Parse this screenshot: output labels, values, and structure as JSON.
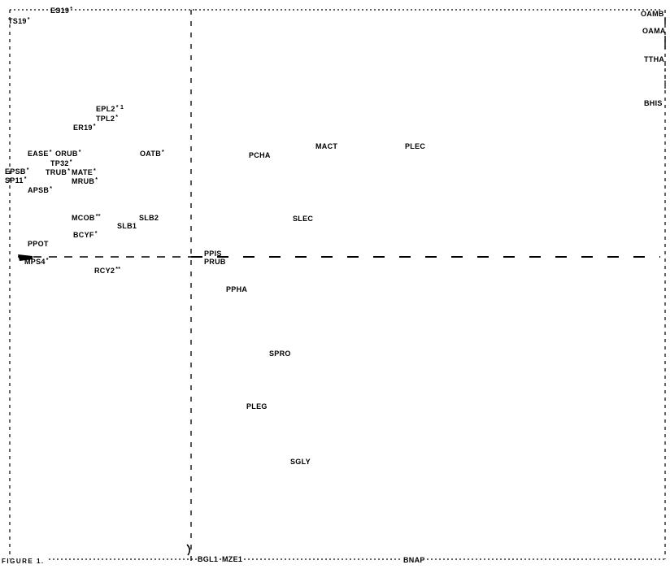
{
  "figure": {
    "caption": "FIGURE 1.",
    "labels": [
      {
        "text": "TS19",
        "mark": "*"
      },
      {
        "text": "ES19",
        "mark": "*"
      },
      {
        "text": "OAMB",
        "mark": ""
      },
      {
        "text": "OAMA",
        "mark": ""
      },
      {
        "text": "TTHA",
        "mark": ""
      },
      {
        "text": "BHIS",
        "mark": ""
      },
      {
        "text": "EPL2",
        "mark": "* 1"
      },
      {
        "text": "TPL2",
        "mark": "*"
      },
      {
        "text": "ER19",
        "mark": "*"
      },
      {
        "text": "EASE",
        "mark": "*"
      },
      {
        "text": "ORUB",
        "mark": "*"
      },
      {
        "text": "OATB",
        "mark": "*"
      },
      {
        "text": "TP32",
        "mark": "*"
      },
      {
        "text": "EPSB",
        "mark": "*"
      },
      {
        "text": "TRUB",
        "mark": "*"
      },
      {
        "text": "MATE",
        "mark": "*"
      },
      {
        "text": "SP11",
        "mark": "*"
      },
      {
        "text": "MRUB",
        "mark": "*"
      },
      {
        "text": "APSB",
        "mark": "*"
      },
      {
        "text": "MCOB",
        "mark": "**"
      },
      {
        "text": "SLB2",
        "mark": ""
      },
      {
        "text": "SLB1",
        "mark": ""
      },
      {
        "text": "BCYF",
        "mark": "*"
      },
      {
        "text": "PPOT",
        "mark": ""
      },
      {
        "text": "MPS4",
        "mark": "*"
      },
      {
        "text": "RCY2",
        "mark": "**"
      },
      {
        "text": "PCHA",
        "mark": ""
      },
      {
        "text": "MACT",
        "mark": ""
      },
      {
        "text": "PLEC",
        "mark": ""
      },
      {
        "text": "SLEC",
        "mark": ""
      },
      {
        "text": "PPIS",
        "mark": ""
      },
      {
        "text": "PRUB",
        "mark": ""
      },
      {
        "text": "PPHA",
        "mark": ""
      },
      {
        "text": "SPRO",
        "mark": ""
      },
      {
        "text": "PLEG",
        "mark": ""
      },
      {
        "text": "SGLY",
        "mark": ""
      },
      {
        "text": "BGL1",
        "mark": ""
      },
      {
        "text": "MZE1",
        "mark": ""
      },
      {
        "text": "BNAP",
        "mark": ""
      }
    ]
  }
}
